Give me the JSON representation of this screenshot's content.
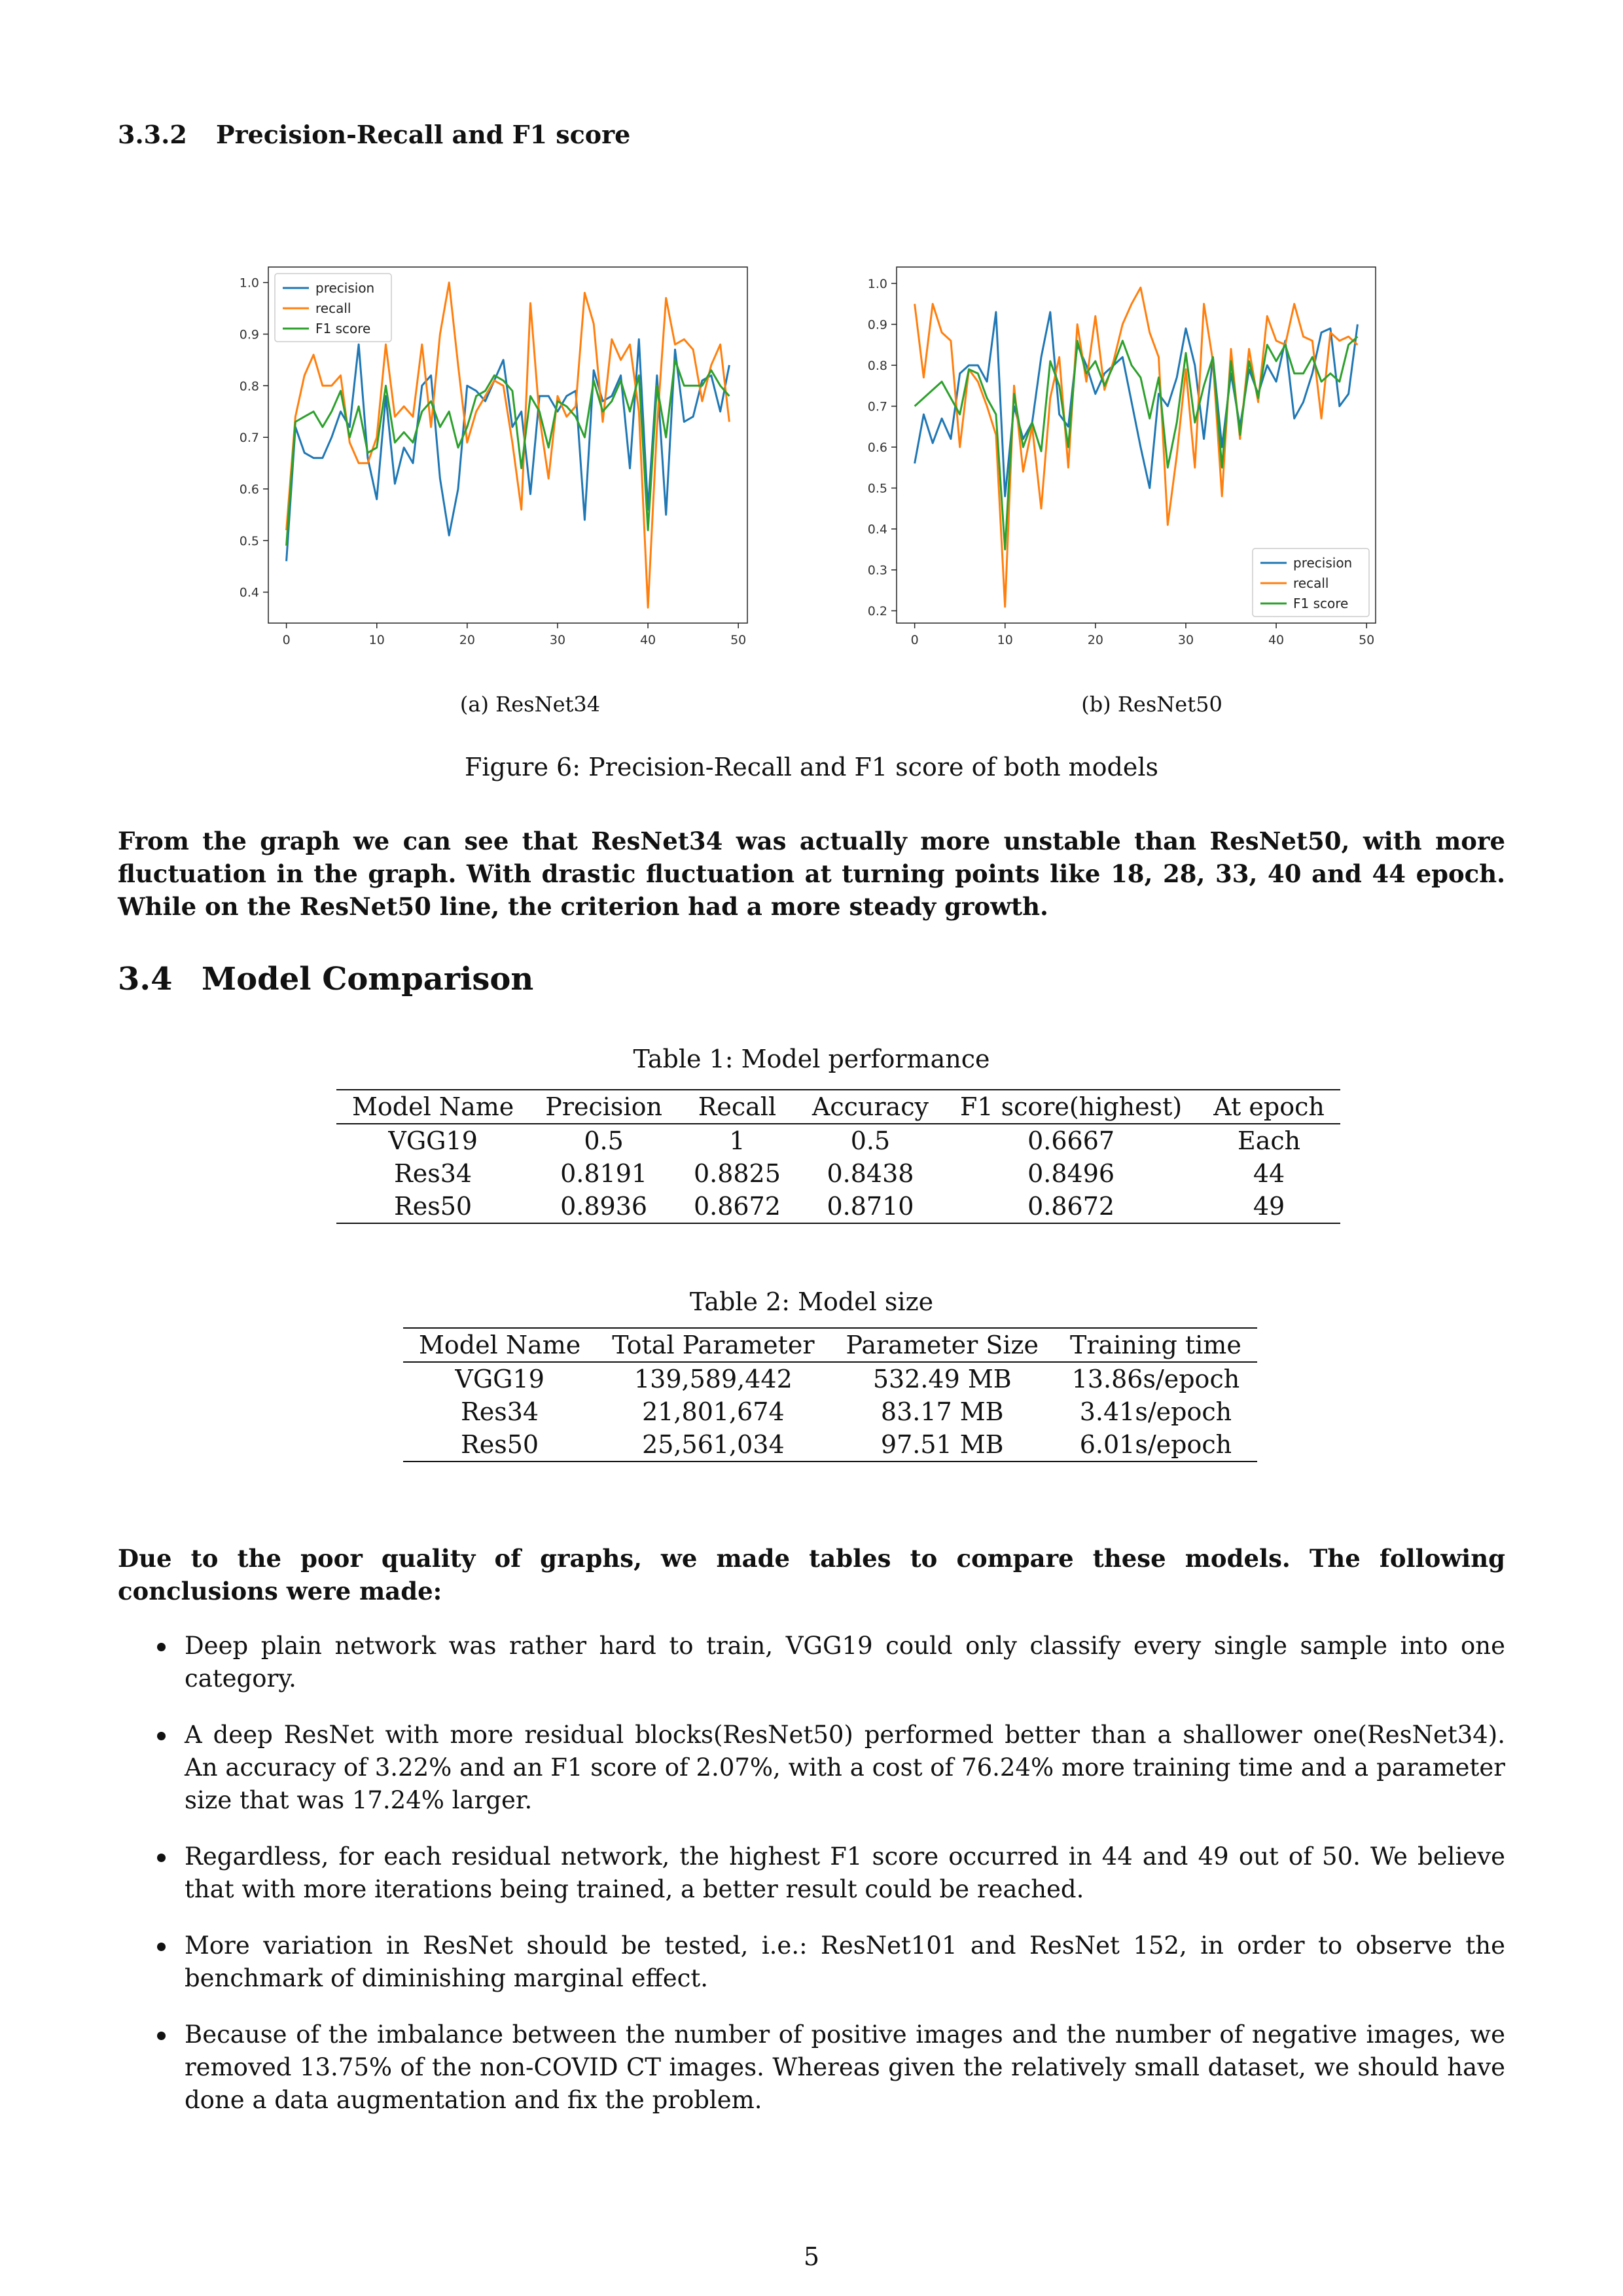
{
  "subsection": {
    "number": "3.3.2",
    "title": "Precision-Recall and F1 score"
  },
  "figure": {
    "caption": "Figure 6: Precision-Recall and F1 score of both models",
    "subcaptions": [
      "(a) ResNet34",
      "(b) ResNet50"
    ]
  },
  "chart_data": [
    {
      "type": "line",
      "title": "",
      "xlabel": "",
      "ylabel": "",
      "xlim": [
        -2,
        51
      ],
      "ylim": [
        0.34,
        1.03
      ],
      "xticks": [
        "0",
        "10",
        "20",
        "30",
        "40",
        "50"
      ],
      "yticks": [
        "0.4",
        "0.5",
        "0.6",
        "0.7",
        "0.8",
        "0.9",
        "1.0"
      ],
      "legend_position": "top-left",
      "colors": [
        "#1f77b4",
        "#ff7f0e",
        "#2ca02c"
      ],
      "x": [
        0,
        1,
        2,
        3,
        4,
        5,
        6,
        7,
        8,
        9,
        10,
        11,
        12,
        13,
        14,
        15,
        16,
        17,
        18,
        19,
        20,
        21,
        22,
        23,
        24,
        25,
        26,
        27,
        28,
        29,
        30,
        31,
        32,
        33,
        34,
        35,
        36,
        37,
        38,
        39,
        40,
        41,
        42,
        43,
        44,
        45,
        46,
        47,
        48,
        49
      ],
      "series": [
        {
          "name": "precision",
          "values": [
            0.46,
            0.72,
            0.67,
            0.66,
            0.66,
            0.7,
            0.75,
            0.72,
            0.88,
            0.66,
            0.58,
            0.78,
            0.61,
            0.68,
            0.65,
            0.8,
            0.82,
            0.62,
            0.51,
            0.6,
            0.8,
            0.79,
            0.77,
            0.81,
            0.85,
            0.72,
            0.75,
            0.59,
            0.78,
            0.78,
            0.75,
            0.78,
            0.79,
            0.54,
            0.83,
            0.77,
            0.78,
            0.82,
            0.64,
            0.89,
            0.56,
            0.82,
            0.55,
            0.87,
            0.73,
            0.74,
            0.81,
            0.82,
            0.75,
            0.84
          ]
        },
        {
          "name": "recall",
          "values": [
            0.52,
            0.74,
            0.82,
            0.86,
            0.8,
            0.8,
            0.82,
            0.69,
            0.65,
            0.65,
            0.7,
            0.88,
            0.74,
            0.76,
            0.74,
            0.88,
            0.72,
            0.9,
            1.0,
            0.84,
            0.69,
            0.75,
            0.78,
            0.81,
            0.8,
            0.69,
            0.56,
            0.96,
            0.74,
            0.62,
            0.78,
            0.74,
            0.76,
            0.98,
            0.92,
            0.73,
            0.89,
            0.85,
            0.88,
            0.75,
            0.37,
            0.72,
            0.97,
            0.88,
            0.89,
            0.87,
            0.77,
            0.84,
            0.88,
            0.73
          ]
        },
        {
          "name": "F1 score",
          "values": [
            0.49,
            0.73,
            0.74,
            0.75,
            0.72,
            0.75,
            0.79,
            0.7,
            0.76,
            0.67,
            0.68,
            0.8,
            0.69,
            0.71,
            0.69,
            0.75,
            0.77,
            0.72,
            0.75,
            0.68,
            0.72,
            0.78,
            0.79,
            0.82,
            0.81,
            0.79,
            0.64,
            0.78,
            0.75,
            0.68,
            0.77,
            0.76,
            0.74,
            0.7,
            0.81,
            0.75,
            0.77,
            0.81,
            0.75,
            0.82,
            0.52,
            0.8,
            0.7,
            0.85,
            0.8,
            0.8,
            0.8,
            0.83,
            0.8,
            0.78
          ]
        }
      ]
    },
    {
      "type": "line",
      "title": "",
      "xlabel": "",
      "ylabel": "",
      "xlim": [
        -2,
        51
      ],
      "ylim": [
        0.17,
        1.04
      ],
      "xticks": [
        "0",
        "10",
        "20",
        "30",
        "40",
        "50"
      ],
      "yticks": [
        "0.2",
        "0.3",
        "0.4",
        "0.5",
        "0.6",
        "0.7",
        "0.8",
        "0.9",
        "1.0"
      ],
      "legend_position": "bottom-right",
      "colors": [
        "#1f77b4",
        "#ff7f0e",
        "#2ca02c"
      ],
      "x": [
        0,
        1,
        2,
        3,
        4,
        5,
        6,
        7,
        8,
        9,
        10,
        11,
        12,
        13,
        14,
        15,
        16,
        17,
        18,
        19,
        20,
        21,
        22,
        23,
        24,
        25,
        26,
        27,
        28,
        29,
        30,
        31,
        32,
        33,
        34,
        35,
        36,
        37,
        38,
        39,
        40,
        41,
        42,
        43,
        44,
        45,
        46,
        47,
        48,
        49
      ],
      "series": [
        {
          "name": "precision",
          "values": [
            0.56,
            0.68,
            0.61,
            0.67,
            0.62,
            0.78,
            0.8,
            0.8,
            0.76,
            0.93,
            0.48,
            0.7,
            0.62,
            0.66,
            0.82,
            0.93,
            0.68,
            0.65,
            0.85,
            0.8,
            0.73,
            0.78,
            0.8,
            0.82,
            0.71,
            0.6,
            0.5,
            0.73,
            0.7,
            0.77,
            0.89,
            0.8,
            0.62,
            0.82,
            0.6,
            0.78,
            0.65,
            0.79,
            0.73,
            0.8,
            0.76,
            0.86,
            0.67,
            0.71,
            0.78,
            0.88,
            0.89,
            0.7,
            0.73,
            0.9
          ]
        },
        {
          "name": "recall",
          "values": [
            0.95,
            0.77,
            0.95,
            0.88,
            0.86,
            0.6,
            0.79,
            0.76,
            0.7,
            0.63,
            0.21,
            0.75,
            0.54,
            0.65,
            0.45,
            0.72,
            0.82,
            0.55,
            0.9,
            0.76,
            0.92,
            0.74,
            0.81,
            0.9,
            0.95,
            0.99,
            0.88,
            0.82,
            0.41,
            0.58,
            0.79,
            0.55,
            0.95,
            0.81,
            0.48,
            0.84,
            0.62,
            0.84,
            0.71,
            0.92,
            0.86,
            0.85,
            0.95,
            0.87,
            0.86,
            0.67,
            0.88,
            0.86,
            0.87,
            0.85
          ]
        },
        {
          "name": "F1 score",
          "values": [
            0.7,
            0.72,
            0.74,
            0.76,
            0.72,
            0.68,
            0.79,
            0.78,
            0.72,
            0.68,
            0.35,
            0.73,
            0.6,
            0.66,
            0.59,
            0.81,
            0.75,
            0.6,
            0.86,
            0.78,
            0.81,
            0.75,
            0.8,
            0.86,
            0.8,
            0.77,
            0.67,
            0.77,
            0.55,
            0.66,
            0.83,
            0.66,
            0.75,
            0.82,
            0.55,
            0.81,
            0.63,
            0.81,
            0.72,
            0.85,
            0.81,
            0.85,
            0.78,
            0.78,
            0.82,
            0.76,
            0.78,
            0.76,
            0.85,
            0.87
          ]
        }
      ]
    }
  ],
  "paragraph1": "From the graph we can see that ResNet34 was actually more unstable than ResNet50, with more fluctuation in the graph. With drastic fluctuation at turning points like 18, 28, 33, 40 and 44 epoch. While on the ResNet50 line, the criterion had a more steady growth.",
  "section": {
    "number": "3.4",
    "title": "Model Comparison"
  },
  "table1": {
    "caption": "Table 1: Model performance",
    "headers": [
      "Model Name",
      "Precision",
      "Recall",
      "Accuracy",
      "F1 score(highest)",
      "At epoch"
    ],
    "rows": [
      [
        "VGG19",
        "0.5",
        "1",
        "0.5",
        "0.6667",
        "Each"
      ],
      [
        "Res34",
        "0.8191",
        "0.8825",
        "0.8438",
        "0.8496",
        "44"
      ],
      [
        "Res50",
        "0.8936",
        "0.8672",
        "0.8710",
        "0.8672",
        "49"
      ]
    ]
  },
  "table2": {
    "caption": "Table 2: Model size",
    "headers": [
      "Model Name",
      "Total Parameter",
      "Parameter Size",
      "Training time"
    ],
    "rows": [
      [
        "VGG19",
        "139,589,442",
        "532.49 MB",
        "13.86s/epoch"
      ],
      [
        "Res34",
        "21,801,674",
        "83.17 MB",
        "3.41s/epoch"
      ],
      [
        "Res50",
        "25,561,034",
        "97.51 MB",
        "6.01s/epoch"
      ]
    ]
  },
  "paragraph2": "Due to the poor quality of graphs, we made tables to compare these models. The following conclusions were made:",
  "bullets": [
    "Deep plain network was rather hard to train, VGG19 could only classify every single sample into one category.",
    "A deep ResNet with more residual blocks(ResNet50) performed better than a shallower one(ResNet34). An accuracy of 3.22% and an F1 score of 2.07%, with a cost of 76.24% more training time and a parameter size that was 17.24% larger.",
    "Regardless, for each residual network, the highest F1 score occurred in 44 and 49 out of 50. We believe that with more iterations being trained, a better result could be reached.",
    "More variation in ResNet should be tested, i.e.: ResNet101 and ResNet 152, in order to observe the benchmark of diminishing marginal effect.",
    "Because of the imbalance between the number of positive images and the number of negative images, we removed 13.75% of the non-COVID CT images. Whereas given the relatively small dataset, we should have done a data augmentation and fix the problem."
  ],
  "page_number": "5"
}
